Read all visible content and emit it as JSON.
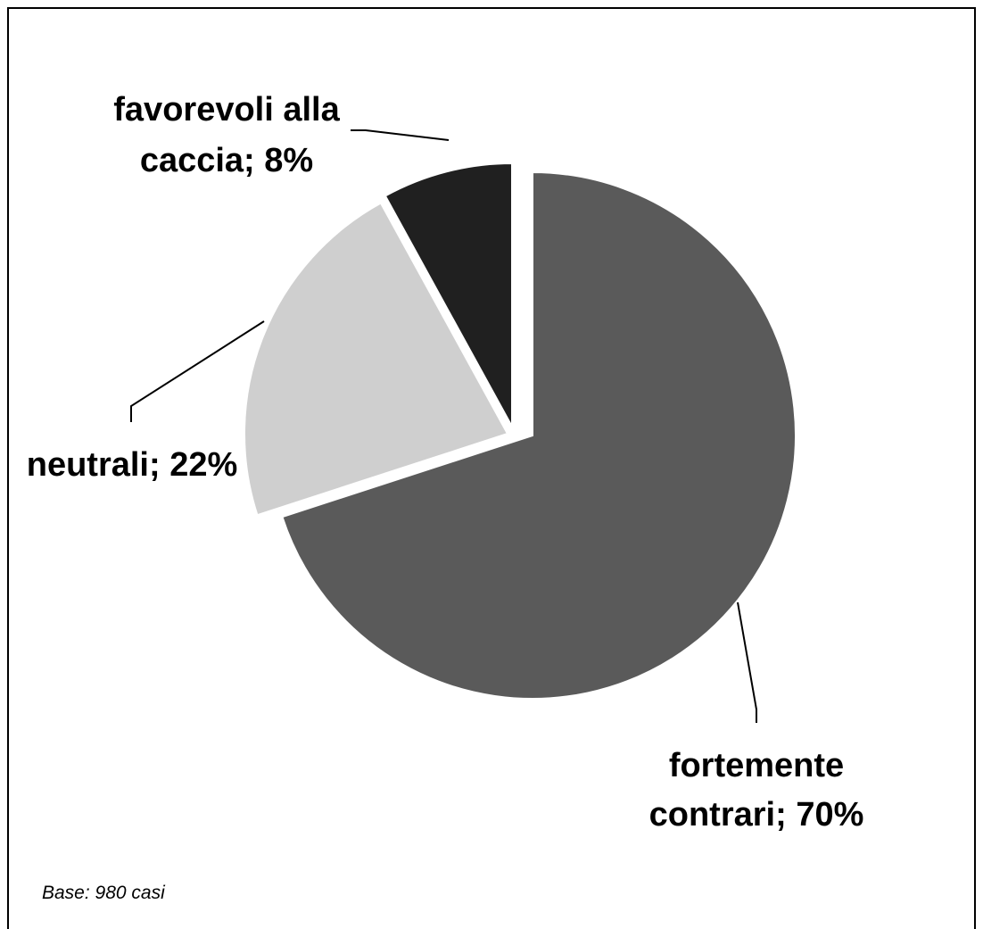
{
  "chart_data": {
    "type": "pie",
    "title": "",
    "slices": [
      {
        "name": "fortemente contrari",
        "value": 70,
        "color": "#5a5a5a",
        "label_lines": [
          "fortemente",
          "contrari; 70%"
        ]
      },
      {
        "name": "neutrali",
        "value": 22,
        "color": "#cfcfcf",
        "label_lines": [
          "neutrali; 22%"
        ]
      },
      {
        "name": "favorevoli alla caccia",
        "value": 8,
        "color": "#202020",
        "label_lines": [
          "favorevoli alla",
          "caccia; 8%"
        ]
      }
    ],
    "exploded": true,
    "note": "Base: 980 casi"
  },
  "colors": {
    "frame": "#000000",
    "background": "#ffffff",
    "slice_stroke": "#ffffff"
  }
}
